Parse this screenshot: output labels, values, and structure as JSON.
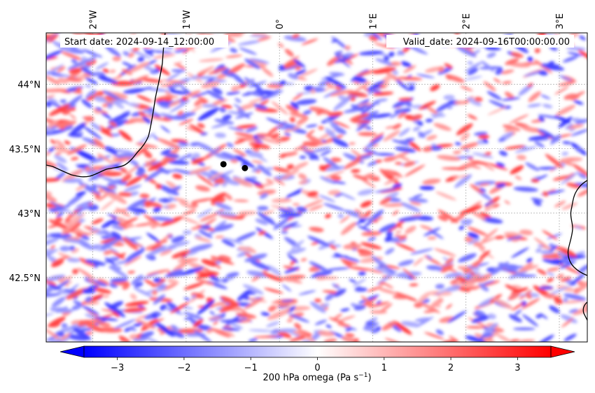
{
  "header": {
    "start_date": "Start date: 2024-09-14_12:00:00",
    "valid_date": "Valid_date: 2024-09-16T00:00:00.00"
  },
  "map": {
    "lon_range": [
      -2.5,
      3.3
    ],
    "lat_range": [
      42.0,
      44.4
    ],
    "lon_ticks": [
      {
        "value": -2,
        "label": "2°W"
      },
      {
        "value": -1,
        "label": "1°W"
      },
      {
        "value": 0,
        "label": "0°"
      },
      {
        "value": 1,
        "label": "1°E"
      },
      {
        "value": 2,
        "label": "2°E"
      },
      {
        "value": 3,
        "label": "3°E"
      }
    ],
    "lat_ticks": [
      {
        "value": 42.5,
        "label": "42.5°N"
      },
      {
        "value": 43.0,
        "label": "43°N"
      },
      {
        "value": 43.5,
        "label": "43.5°N"
      },
      {
        "value": 44.0,
        "label": "44°N"
      }
    ],
    "points": [
      {
        "name": "point-marker-1",
        "lon": -0.6,
        "lat": 43.38
      },
      {
        "name": "point-marker-2",
        "lon": -0.37,
        "lat": 43.35
      }
    ]
  },
  "colorbar": {
    "label": "200 hPa omega (Pa s",
    "label_sup": "−1",
    "label_end": ")",
    "vmin": -3.5,
    "vmax": 3.5,
    "ticks": [
      {
        "value": -3,
        "label": "−3"
      },
      {
        "value": -2,
        "label": "−2"
      },
      {
        "value": -1,
        "label": "−1"
      },
      {
        "value": 0,
        "label": "0"
      },
      {
        "value": 1,
        "label": "1"
      },
      {
        "value": 2,
        "label": "2"
      },
      {
        "value": 3,
        "label": "3"
      }
    ],
    "colormap": "bwr",
    "low_color": "#0000ff",
    "mid_color": "#ffffff",
    "high_color": "#ff0000"
  }
}
